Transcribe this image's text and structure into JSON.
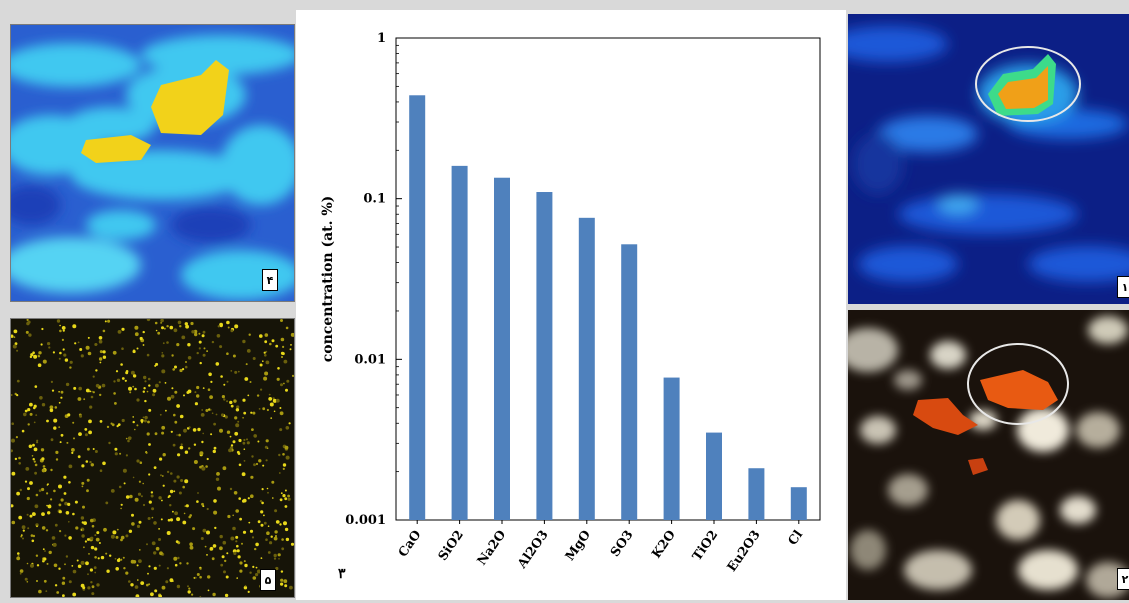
{
  "panels": {
    "top_left_label": "۴",
    "bottom_left_label": "۵",
    "top_right_label": "۱",
    "bottom_right_label": "۲",
    "chart_label": "۳"
  },
  "colors": {
    "bar": "#4f81bd",
    "map_blue_dark": "#1f4ed8",
    "map_cyan": "#35c6ee",
    "map_yellow": "#f2d21a",
    "map_orange": "#e85a12"
  },
  "chart_data": {
    "type": "bar",
    "categories": [
      "CaO",
      "SiO2",
      "Na2O",
      "Al2O3",
      "MgO",
      "SO3",
      "K2O",
      "TiO2",
      "Eu2O3",
      "Cl"
    ],
    "values": [
      0.44,
      0.16,
      0.135,
      0.11,
      0.076,
      0.052,
      0.0077,
      0.0035,
      0.0021,
      0.0016
    ],
    "ylabel": "concentration (at. %)",
    "xlabel": "",
    "yscale": "log",
    "ylim": [
      0.001,
      1
    ],
    "yticks": [
      {
        "value": 1,
        "label": "1"
      },
      {
        "value": 0.1,
        "label": "0.1"
      },
      {
        "value": 0.01,
        "label": "0.01"
      },
      {
        "value": 0.001,
        "label": "0.001"
      }
    ],
    "grid": false,
    "legend": "none"
  }
}
